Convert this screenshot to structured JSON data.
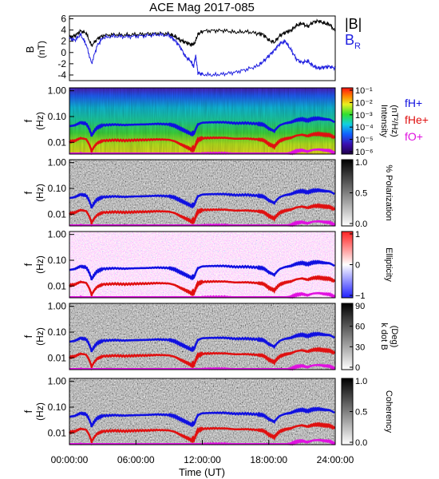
{
  "chart_data": {
    "type": "line",
    "title": "ACE Mag 2017-085",
    "xlabel": "Time (UT)",
    "x_ticks": [
      "00:00:00",
      "06:00:00",
      "12:00:00",
      "18:00:00",
      "24:00:00"
    ],
    "x_range_hours": [
      0,
      24
    ],
    "panels": [
      {
        "type": "line",
        "ylabel": "B",
        "yunit": "(nT)",
        "ylim": [
          -5,
          6.5
        ],
        "y_ticks": [
          "6",
          "4",
          "2",
          "0",
          "-2",
          "-4"
        ],
        "y_tick_values": [
          6,
          4,
          2,
          0,
          -2,
          -4
        ],
        "legend": [
          "|B|",
          "BR"
        ],
        "series": [
          {
            "name": "|B|",
            "color": "#000000",
            "x": [
              0,
              0.5,
              1,
              1.5,
              2,
              2.5,
              3,
              4,
              5,
              6,
              7,
              8,
              9,
              9.5,
              10,
              10.5,
              11,
              11.3,
              11.6,
              12,
              13,
              14,
              15,
              16,
              17,
              17.5,
              18,
              18.5,
              19,
              19.5,
              20,
              20.5,
              21,
              21.5,
              22,
              22.5,
              23,
              23.5,
              24
            ],
            "y": [
              2.7,
              3.0,
              3.8,
              3.5,
              1.2,
              2.4,
              3.0,
              3.2,
              3.1,
              3.2,
              3.3,
              3.4,
              3.3,
              2.9,
              2.2,
              1.8,
              1.4,
              1.6,
              3.2,
              3.8,
              3.9,
              3.9,
              3.6,
              3.7,
              3.4,
              3.2,
              2.2,
              1.8,
              3.0,
              3.6,
              3.9,
              4.8,
              5.2,
              4.6,
              5.4,
              5.6,
              5.2,
              5.0,
              3.8
            ]
          },
          {
            "name": "BR",
            "color": "#2020e0",
            "x": [
              0,
              0.5,
              1,
              1.5,
              2,
              2.5,
              3,
              4,
              5,
              6,
              7,
              8,
              9,
              9.5,
              10,
              10.5,
              11,
              11.2,
              11.4,
              11.6,
              12,
              13,
              14,
              15,
              16,
              17,
              17.5,
              18,
              18.5,
              19,
              19.5,
              20,
              20.5,
              21,
              21.5,
              22,
              22.5,
              23,
              23.5,
              24
            ],
            "y": [
              2.5,
              2.2,
              3.2,
              1.5,
              -2.0,
              1.2,
              2.6,
              2.9,
              2.8,
              2.9,
              3.0,
              3.2,
              3.0,
              2.2,
              1.0,
              -0.8,
              -1.6,
              -2.6,
              -0.5,
              -3.6,
              -3.9,
              -4.0,
              -3.8,
              -3.5,
              -3.0,
              -2.4,
              -1.6,
              -0.6,
              0.4,
              1.6,
              2.0,
              0.5,
              -1.2,
              -1.8,
              -1.5,
              -2.4,
              -2.8,
              -2.6,
              -2.5,
              -2.8
            ]
          }
        ]
      },
      {
        "type": "heatmap",
        "ylabel": "f",
        "yunit": "(Hz)",
        "y_ticks": [
          "1.00",
          "0.10",
          "0.01"
        ],
        "colorbar": {
          "title": "Intensity",
          "unit": "(nT²/Hz)",
          "ticks": [
            "10⁻¹",
            "10⁻²",
            "10⁻³",
            "10⁻⁴",
            "10⁻⁵",
            "10⁻⁶"
          ],
          "scale": "rainbow"
        },
        "legend": [
          "fH+",
          "fHe+",
          "fO+"
        ],
        "legend_colors": [
          "#1010e0",
          "#e01010",
          "#e010e0"
        ]
      },
      {
        "type": "heatmap",
        "ylabel": "f",
        "yunit": "(Hz)",
        "y_ticks": [
          "1.00",
          "0.10",
          "0.01"
        ],
        "colorbar": {
          "title": "% Polarization",
          "ticks": [
            "1.0",
            "0.5",
            "0.0"
          ],
          "scale": "gray"
        }
      },
      {
        "type": "heatmap",
        "ylabel": "f",
        "yunit": "(Hz)",
        "y_ticks": [
          "1.00",
          "0.10",
          "0.01"
        ],
        "colorbar": {
          "title": "Ellipticity",
          "ticks": [
            "1",
            "0",
            "−1"
          ],
          "scale": "bwr"
        }
      },
      {
        "type": "heatmap",
        "ylabel": "f",
        "yunit": "(Hz)",
        "y_ticks": [
          "1.00",
          "0.10",
          "0.01"
        ],
        "colorbar": {
          "title": "k dot B",
          "unit": "(Deg)",
          "ticks": [
            "90",
            "60",
            "30",
            "0"
          ],
          "scale": "gray"
        }
      },
      {
        "type": "heatmap",
        "ylabel": "f",
        "yunit": "(Hz)",
        "y_ticks": [
          "1.00",
          "0.10",
          "0.01"
        ],
        "colorbar": {
          "title": "Coherency",
          "ticks": [
            "1.0",
            "0.5",
            "0.0"
          ],
          "scale": "gray"
        }
      }
    ],
    "gyrofrequency_lines": {
      "fH+": {
        "color": "#1010e0",
        "x": [
          0,
          0.5,
          1,
          1.5,
          2,
          2.5,
          3,
          4,
          5,
          6,
          7,
          8,
          9,
          9.5,
          10,
          10.5,
          11,
          11.3,
          11.6,
          12,
          13,
          14,
          15,
          16,
          17,
          17.5,
          18,
          18.5,
          19,
          19.5,
          20,
          20.5,
          21,
          21.5,
          22,
          22.5,
          23,
          23.5,
          24
        ],
        "y": [
          0.042,
          0.046,
          0.058,
          0.053,
          0.018,
          0.037,
          0.046,
          0.049,
          0.047,
          0.049,
          0.05,
          0.052,
          0.05,
          0.044,
          0.034,
          0.027,
          0.021,
          0.024,
          0.049,
          0.058,
          0.06,
          0.06,
          0.055,
          0.056,
          0.052,
          0.049,
          0.034,
          0.027,
          0.046,
          0.055,
          0.06,
          0.073,
          0.079,
          0.07,
          0.082,
          0.085,
          0.079,
          0.076,
          0.058
        ]
      }
    }
  }
}
